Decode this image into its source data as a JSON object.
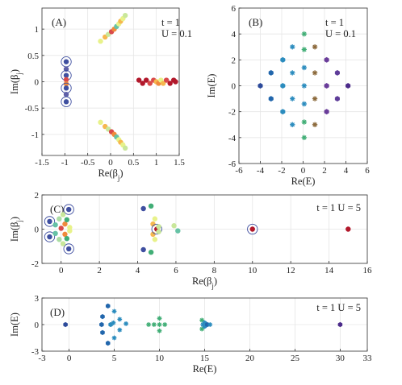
{
  "chart_data": [
    {
      "panel_label": "(A)",
      "type": "scatter",
      "params": [
        "t = 1",
        "U = 0.1"
      ],
      "xlabel": "Re(β_j)",
      "ylabel": "Im(β_j)",
      "xlim": [
        -1.5,
        1.5
      ],
      "ylim": [
        -1.4,
        1.4
      ],
      "xticks": [
        -1.5,
        -1,
        -0.5,
        0,
        0.5,
        1,
        1.5
      ],
      "yticks": [
        -1,
        -0.5,
        0,
        0.5,
        1
      ],
      "grid": true,
      "points": [
        {
          "x": -0.97,
          "y": 0.38,
          "c": "#3f4fa0",
          "ring": true
        },
        {
          "x": -0.97,
          "y": 0.24,
          "c": "#5e5fa8"
        },
        {
          "x": -0.97,
          "y": 0.12,
          "c": "#3f4fa0",
          "ring": true
        },
        {
          "x": -0.97,
          "y": 0.04,
          "c": "#d94a4a"
        },
        {
          "x": -0.97,
          "y": -0.04,
          "c": "#f08a3c"
        },
        {
          "x": -0.97,
          "y": -0.12,
          "c": "#3f4fa0",
          "ring": true
        },
        {
          "x": -0.97,
          "y": -0.24,
          "c": "#5e5fa8"
        },
        {
          "x": -0.97,
          "y": -0.38,
          "c": "#3f4fa0",
          "ring": true
        },
        {
          "x": -0.22,
          "y": 0.77,
          "c": "#e8f28a"
        },
        {
          "x": -0.12,
          "y": 0.85,
          "c": "#f6b84e"
        },
        {
          "x": -0.05,
          "y": 0.9,
          "c": "#c9e79b"
        },
        {
          "x": 0.02,
          "y": 0.95,
          "c": "#d94a4a"
        },
        {
          "x": 0.08,
          "y": 1.0,
          "c": "#f08a3c"
        },
        {
          "x": 0.13,
          "y": 1.05,
          "c": "#66c2a5"
        },
        {
          "x": 0.18,
          "y": 1.1,
          "c": "#e8f28a"
        },
        {
          "x": 0.22,
          "y": 1.15,
          "c": "#f6b84e"
        },
        {
          "x": 0.27,
          "y": 1.2,
          "c": "#e8f28a"
        },
        {
          "x": 0.32,
          "y": 1.26,
          "c": "#c9e79b"
        },
        {
          "x": -0.22,
          "y": -0.77,
          "c": "#e8f28a"
        },
        {
          "x": -0.12,
          "y": -0.85,
          "c": "#f6b84e"
        },
        {
          "x": -0.05,
          "y": -0.9,
          "c": "#c9e79b"
        },
        {
          "x": 0.02,
          "y": -0.95,
          "c": "#d94a4a"
        },
        {
          "x": 0.08,
          "y": -1.0,
          "c": "#f08a3c"
        },
        {
          "x": 0.13,
          "y": -1.05,
          "c": "#66c2a5"
        },
        {
          "x": 0.18,
          "y": -1.1,
          "c": "#e8f28a"
        },
        {
          "x": 0.22,
          "y": -1.15,
          "c": "#f6b84e"
        },
        {
          "x": 0.27,
          "y": -1.2,
          "c": "#e8f28a"
        },
        {
          "x": 0.32,
          "y": -1.26,
          "c": "#c9e79b"
        },
        {
          "x": 0.62,
          "y": 0.03,
          "c": "#b2182b"
        },
        {
          "x": 0.7,
          "y": -0.03,
          "c": "#b2182b"
        },
        {
          "x": 0.78,
          "y": 0.03,
          "c": "#b2182b"
        },
        {
          "x": 0.86,
          "y": -0.03,
          "c": "#d94a4a"
        },
        {
          "x": 0.94,
          "y": 0.03,
          "c": "#d94a4a"
        },
        {
          "x": 1.0,
          "y": 0.0,
          "c": "#f6b84e"
        },
        {
          "x": 1.05,
          "y": -0.03,
          "c": "#f08a3c"
        },
        {
          "x": 1.1,
          "y": 0.03,
          "c": "#e8f28a"
        },
        {
          "x": 1.15,
          "y": -0.03,
          "c": "#f6b84e"
        },
        {
          "x": 1.22,
          "y": 0.03,
          "c": "#d94a4a"
        },
        {
          "x": 1.3,
          "y": -0.03,
          "c": "#b2182b"
        },
        {
          "x": 1.38,
          "y": 0.03,
          "c": "#b2182b"
        },
        {
          "x": 1.42,
          "y": 0.0,
          "c": "#b2182b"
        }
      ]
    },
    {
      "panel_label": "(B)",
      "type": "scatter",
      "params": [
        "t = 1",
        "U = 0.1"
      ],
      "xlabel": "Re(E)",
      "ylabel": "Im(E)",
      "xlim": [
        -6,
        6
      ],
      "ylim": [
        -6,
        6
      ],
      "xticks": [
        -6,
        -4,
        -2,
        0,
        2,
        4,
        6
      ],
      "yticks": [
        -6,
        -4,
        -2,
        0,
        2,
        4,
        6
      ],
      "grid": true,
      "points": [
        {
          "x": 0.1,
          "y": 4.0,
          "c": "#41ae76",
          "m": "star"
        },
        {
          "x": 0.1,
          "y": 2.8,
          "c": "#41ae76",
          "m": "star"
        },
        {
          "x": 0.1,
          "y": 1.4,
          "c": "#2b8cbe",
          "m": "star"
        },
        {
          "x": 0.1,
          "y": 0.0,
          "c": "#2b8cbe",
          "m": "star"
        },
        {
          "x": 0.1,
          "y": -1.4,
          "c": "#2b8cbe",
          "m": "star"
        },
        {
          "x": 0.1,
          "y": -2.8,
          "c": "#41ae76",
          "m": "star"
        },
        {
          "x": 0.1,
          "y": -4.0,
          "c": "#41ae76",
          "m": "star"
        },
        {
          "x": -1.0,
          "y": 3.0,
          "c": "#2b8cbe",
          "m": "star"
        },
        {
          "x": -1.0,
          "y": 1.0,
          "c": "#2b8cbe",
          "m": "star"
        },
        {
          "x": -1.0,
          "y": -1.0,
          "c": "#2b8cbe",
          "m": "star"
        },
        {
          "x": -1.0,
          "y": -3.0,
          "c": "#2b8cbe",
          "m": "star"
        },
        {
          "x": 1.1,
          "y": 3.0,
          "c": "#8c6a3c",
          "m": "star"
        },
        {
          "x": 1.1,
          "y": 1.0,
          "c": "#8c6a3c",
          "m": "star"
        },
        {
          "x": 1.1,
          "y": -1.0,
          "c": "#8c6a3c",
          "m": "star"
        },
        {
          "x": 1.1,
          "y": -3.0,
          "c": "#8c6a3c",
          "m": "star"
        },
        {
          "x": -1.9,
          "y": 2.0,
          "c": "#2b8cbe",
          "m": "hex"
        },
        {
          "x": -1.9,
          "y": 0.0,
          "c": "#2b8cbe",
          "m": "hex"
        },
        {
          "x": -1.9,
          "y": -2.0,
          "c": "#2b8cbe",
          "m": "hex"
        },
        {
          "x": -3.0,
          "y": 1.0,
          "c": "#2166ac",
          "m": "hex"
        },
        {
          "x": -3.0,
          "y": -1.0,
          "c": "#2166ac",
          "m": "hex"
        },
        {
          "x": -4.0,
          "y": 0.0,
          "c": "#2c4a9a",
          "m": "hex"
        },
        {
          "x": 2.2,
          "y": 2.0,
          "c": "#6a3d9a",
          "m": "hex"
        },
        {
          "x": 2.2,
          "y": 0.0,
          "c": "#6a3d9a",
          "m": "hex"
        },
        {
          "x": 2.2,
          "y": -2.0,
          "c": "#6a3d9a",
          "m": "hex"
        },
        {
          "x": 3.2,
          "y": 1.0,
          "c": "#5e3c99",
          "m": "hex"
        },
        {
          "x": 3.2,
          "y": -1.0,
          "c": "#5e3c99",
          "m": "hex"
        },
        {
          "x": 4.2,
          "y": 0.0,
          "c": "#4b2a8a",
          "m": "hex"
        }
      ]
    },
    {
      "panel_label": "(C)",
      "type": "scatter",
      "params": [
        "t = 1 U = 5"
      ],
      "xlabel": "Re(β_j)",
      "ylabel": "Im(β_j)",
      "xlim": [
        -1,
        16
      ],
      "ylim": [
        -2,
        2
      ],
      "xticks": [
        0,
        2,
        4,
        6,
        8,
        10,
        12,
        14,
        16
      ],
      "yticks": [
        -2,
        0,
        2
      ],
      "grid": true,
      "points": [
        {
          "x": -0.6,
          "y": 0.45,
          "c": "#3f4fa0",
          "ring": true
        },
        {
          "x": -0.6,
          "y": -0.45,
          "c": "#3f4fa0",
          "ring": true
        },
        {
          "x": 0.4,
          "y": 1.15,
          "c": "#3f4fa0",
          "ring": true
        },
        {
          "x": 0.4,
          "y": -1.15,
          "c": "#3f4fa0",
          "ring": true
        },
        {
          "x": -0.3,
          "y": 0.25,
          "c": "#66c2a5"
        },
        {
          "x": -0.3,
          "y": -0.25,
          "c": "#66c2a5"
        },
        {
          "x": -0.1,
          "y": 0.6,
          "c": "#abdda4"
        },
        {
          "x": -0.1,
          "y": -0.6,
          "c": "#abdda4"
        },
        {
          "x": 0.0,
          "y": 0.05,
          "c": "#d94a4a"
        },
        {
          "x": 0.2,
          "y": 0.3,
          "c": "#f08a3c"
        },
        {
          "x": 0.2,
          "y": -0.3,
          "c": "#f08a3c"
        },
        {
          "x": 0.1,
          "y": 0.85,
          "c": "#c9e79b"
        },
        {
          "x": 0.1,
          "y": -0.85,
          "c": "#c9e79b"
        },
        {
          "x": 0.45,
          "y": 0.1,
          "c": "#e8f28a"
        },
        {
          "x": 0.45,
          "y": -0.1,
          "c": "#e8f28a"
        },
        {
          "x": 0.3,
          "y": 0.55,
          "c": "#41ae76"
        },
        {
          "x": 0.3,
          "y": -0.55,
          "c": "#41ae76"
        },
        {
          "x": 4.3,
          "y": 1.2,
          "c": "#3f4fa0"
        },
        {
          "x": 4.3,
          "y": -1.2,
          "c": "#3f4fa0"
        },
        {
          "x": 4.7,
          "y": 1.35,
          "c": "#41ae76"
        },
        {
          "x": 4.7,
          "y": -1.35,
          "c": "#41ae76"
        },
        {
          "x": 4.9,
          "y": 0.6,
          "c": "#e8f28a"
        },
        {
          "x": 4.9,
          "y": -0.6,
          "c": "#e8f28a"
        },
        {
          "x": 4.8,
          "y": 0.3,
          "c": "#f6b84e"
        },
        {
          "x": 4.8,
          "y": -0.3,
          "c": "#f6b84e"
        },
        {
          "x": 5.0,
          "y": 0.0,
          "c": "#b2182b",
          "ring": true
        },
        {
          "x": 5.1,
          "y": 0.15,
          "c": "#c9e79b"
        },
        {
          "x": 5.1,
          "y": -0.15,
          "c": "#c9e79b"
        },
        {
          "x": 5.9,
          "y": 0.2,
          "c": "#c9e79b"
        },
        {
          "x": 6.1,
          "y": -0.1,
          "c": "#66c2a5"
        },
        {
          "x": 10.0,
          "y": 0.0,
          "c": "#b2182b",
          "ring": true
        },
        {
          "x": 15.0,
          "y": 0.0,
          "c": "#b2182b"
        }
      ]
    },
    {
      "panel_label": "(D)",
      "type": "scatter",
      "params": [
        "t = 1 U = 5"
      ],
      "xlabel": "Re(E)",
      "ylabel": "Im(E)",
      "xlim": [
        -3,
        33
      ],
      "ylim": [
        -3,
        3
      ],
      "xticks": [
        -3,
        0,
        5,
        10,
        15,
        20,
        25,
        30,
        33
      ],
      "yticks": [
        -3,
        0,
        3
      ],
      "grid": true,
      "points": [
        {
          "x": -0.4,
          "y": 0.0,
          "c": "#2c4a9a",
          "m": "hex"
        },
        {
          "x": 4.3,
          "y": 2.1,
          "c": "#2166ac",
          "m": "hex"
        },
        {
          "x": 4.3,
          "y": -2.1,
          "c": "#2166ac",
          "m": "hex"
        },
        {
          "x": 3.7,
          "y": 0.9,
          "c": "#2166ac",
          "m": "hex"
        },
        {
          "x": 3.7,
          "y": -0.9,
          "c": "#2166ac",
          "m": "hex"
        },
        {
          "x": 3.6,
          "y": 0.0,
          "c": "#2166ac",
          "m": "hex"
        },
        {
          "x": 4.6,
          "y": 0.0,
          "c": "#2b8cbe",
          "m": "hex"
        },
        {
          "x": 5.0,
          "y": 1.5,
          "c": "#2b8cbe",
          "m": "star"
        },
        {
          "x": 5.0,
          "y": -1.5,
          "c": "#2b8cbe",
          "m": "star"
        },
        {
          "x": 5.6,
          "y": 0.6,
          "c": "#2b8cbe",
          "m": "star"
        },
        {
          "x": 5.6,
          "y": -0.6,
          "c": "#2b8cbe",
          "m": "star"
        },
        {
          "x": 6.3,
          "y": 0.1,
          "c": "#2b8cbe",
          "m": "star"
        },
        {
          "x": 4.9,
          "y": 0.2,
          "c": "#2b8cbe",
          "m": "star"
        },
        {
          "x": 8.8,
          "y": 0.0,
          "c": "#41ae76",
          "m": "star"
        },
        {
          "x": 9.4,
          "y": 0.0,
          "c": "#41ae76",
          "m": "star"
        },
        {
          "x": 10.0,
          "y": 0.7,
          "c": "#41ae76",
          "m": "star"
        },
        {
          "x": 10.0,
          "y": -0.7,
          "c": "#41ae76",
          "m": "star"
        },
        {
          "x": 10.0,
          "y": 0.0,
          "c": "#41ae76",
          "m": "star"
        },
        {
          "x": 10.6,
          "y": 0.0,
          "c": "#41ae76",
          "m": "star"
        },
        {
          "x": 14.7,
          "y": 0.5,
          "c": "#41ae76",
          "m": "star"
        },
        {
          "x": 14.7,
          "y": -0.5,
          "c": "#41ae76",
          "m": "star"
        },
        {
          "x": 14.8,
          "y": 0.0,
          "c": "#2b8cbe",
          "m": "star"
        },
        {
          "x": 15.0,
          "y": 0.2,
          "c": "#2b8cbe",
          "m": "hex"
        },
        {
          "x": 15.0,
          "y": -0.2,
          "c": "#2b8cbe",
          "m": "hex"
        },
        {
          "x": 15.3,
          "y": 0.0,
          "c": "#2166ac",
          "m": "hex"
        },
        {
          "x": 15.6,
          "y": 0.0,
          "c": "#2b8cbe",
          "m": "star"
        },
        {
          "x": 30.0,
          "y": 0.0,
          "c": "#4b2a8a",
          "m": "hex"
        }
      ]
    }
  ]
}
